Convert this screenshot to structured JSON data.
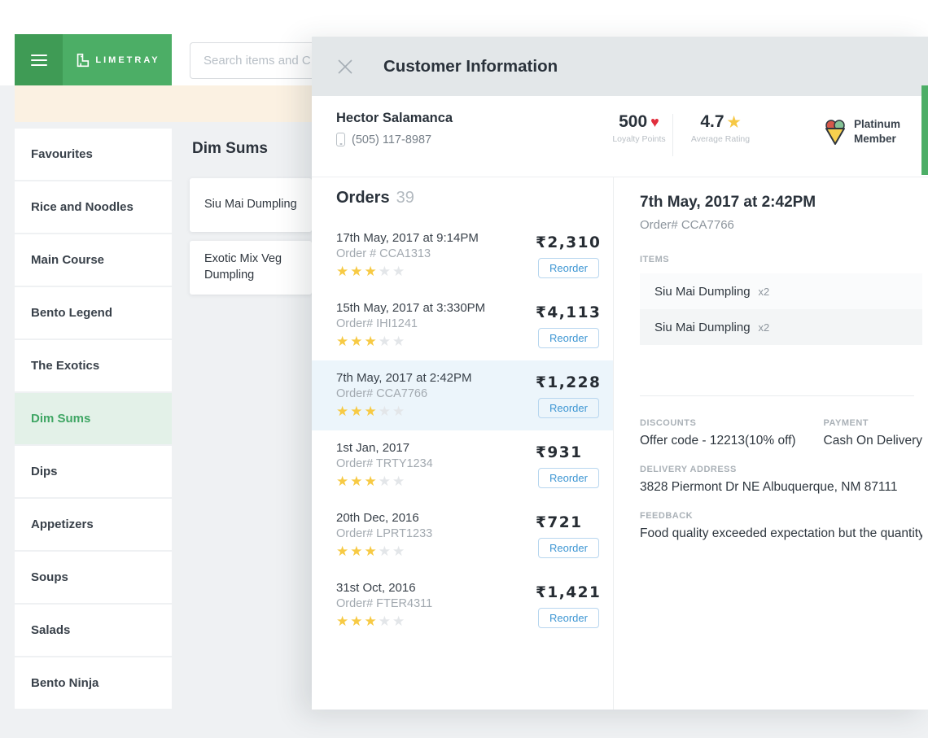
{
  "header": {
    "brand": "LIMETRAY",
    "search_placeholder": "Search items and C"
  },
  "sidebar": {
    "items": [
      {
        "label": "Favourites"
      },
      {
        "label": "Rice and Noodles"
      },
      {
        "label": "Main Course"
      },
      {
        "label": "Bento Legend"
      },
      {
        "label": "The Exotics"
      },
      {
        "label": "Dim Sums",
        "selected": true
      },
      {
        "label": "Dips"
      },
      {
        "label": "Appetizers"
      },
      {
        "label": "Soups"
      },
      {
        "label": "Salads"
      },
      {
        "label": "Bento Ninja"
      }
    ]
  },
  "menu": {
    "category_title": "Dim Sums",
    "items": [
      {
        "name": "Siu Mai Dumpling"
      },
      {
        "name": "Exotic Mix Veg Dumpling"
      }
    ]
  },
  "panel": {
    "title": "Customer Information",
    "customer": {
      "name": "Hector Salamanca",
      "phone": "(505) 117-8987",
      "loyalty_points": "500",
      "loyalty_caption": "Loyalty Points",
      "rating": "4.7",
      "rating_caption": "Average Rating",
      "membership": "Platinum Member"
    },
    "orders": {
      "heading": "Orders",
      "count": "39",
      "reorder_label": "Reorder",
      "list": [
        {
          "date": "17th May, 2017 at 9:14PM",
          "order_no": "Order # CCA1313",
          "rating": 3,
          "price": "₹2,310"
        },
        {
          "date": "15th May, 2017 at 3:330PM",
          "order_no": "Order# IHI1241",
          "rating": 3,
          "price": "₹4,113"
        },
        {
          "date": "7th May, 2017 at 2:42PM",
          "order_no": "Order# CCA7766",
          "rating": 3,
          "price": "₹1,228",
          "highlighted": true
        },
        {
          "date": "1st Jan, 2017",
          "order_no": "Order# TRTY1234",
          "rating": 3,
          "price": "₹931"
        },
        {
          "date": "20th Dec, 2016",
          "order_no": "Order# LPRT1233",
          "rating": 3,
          "price": "₹721"
        },
        {
          "date": "31st Oct, 2016",
          "order_no": "Order# FTER4311",
          "rating": 3,
          "price": "₹1,421"
        }
      ]
    },
    "detail": {
      "title": "7th May, 2017 at 2:42PM",
      "order_no": "Order# CCA7766",
      "items_label": "ITEMS",
      "items": [
        {
          "name": "Siu Mai Dumpling",
          "qty": "x2"
        },
        {
          "name": "Siu Mai Dumpling",
          "qty": "x2"
        }
      ],
      "discounts_label": "DISCOUNTS",
      "discounts": "Offer code - 12213(10% off)",
      "payment_label": "PAYMENT",
      "payment": "Cash On Delivery",
      "address_label": "DELIVERY ADDRESS",
      "address": "3828 Piermont Dr NE Albuquerque, NM 87111",
      "feedback_label": "FEEDBACK",
      "feedback": "Food quality exceeded expectation but the quantity was"
    }
  },
  "colors": {
    "brand_green": "#4cae66",
    "dark_green": "#3f9b55",
    "cream": "#fbf1e2",
    "accent_blue": "#3d96d3",
    "star_yellow": "#f7ca44",
    "heart_red": "#e12e3d",
    "highlight_blue": "#ecf5fb",
    "selected_green_bg": "#e3f1e8"
  }
}
